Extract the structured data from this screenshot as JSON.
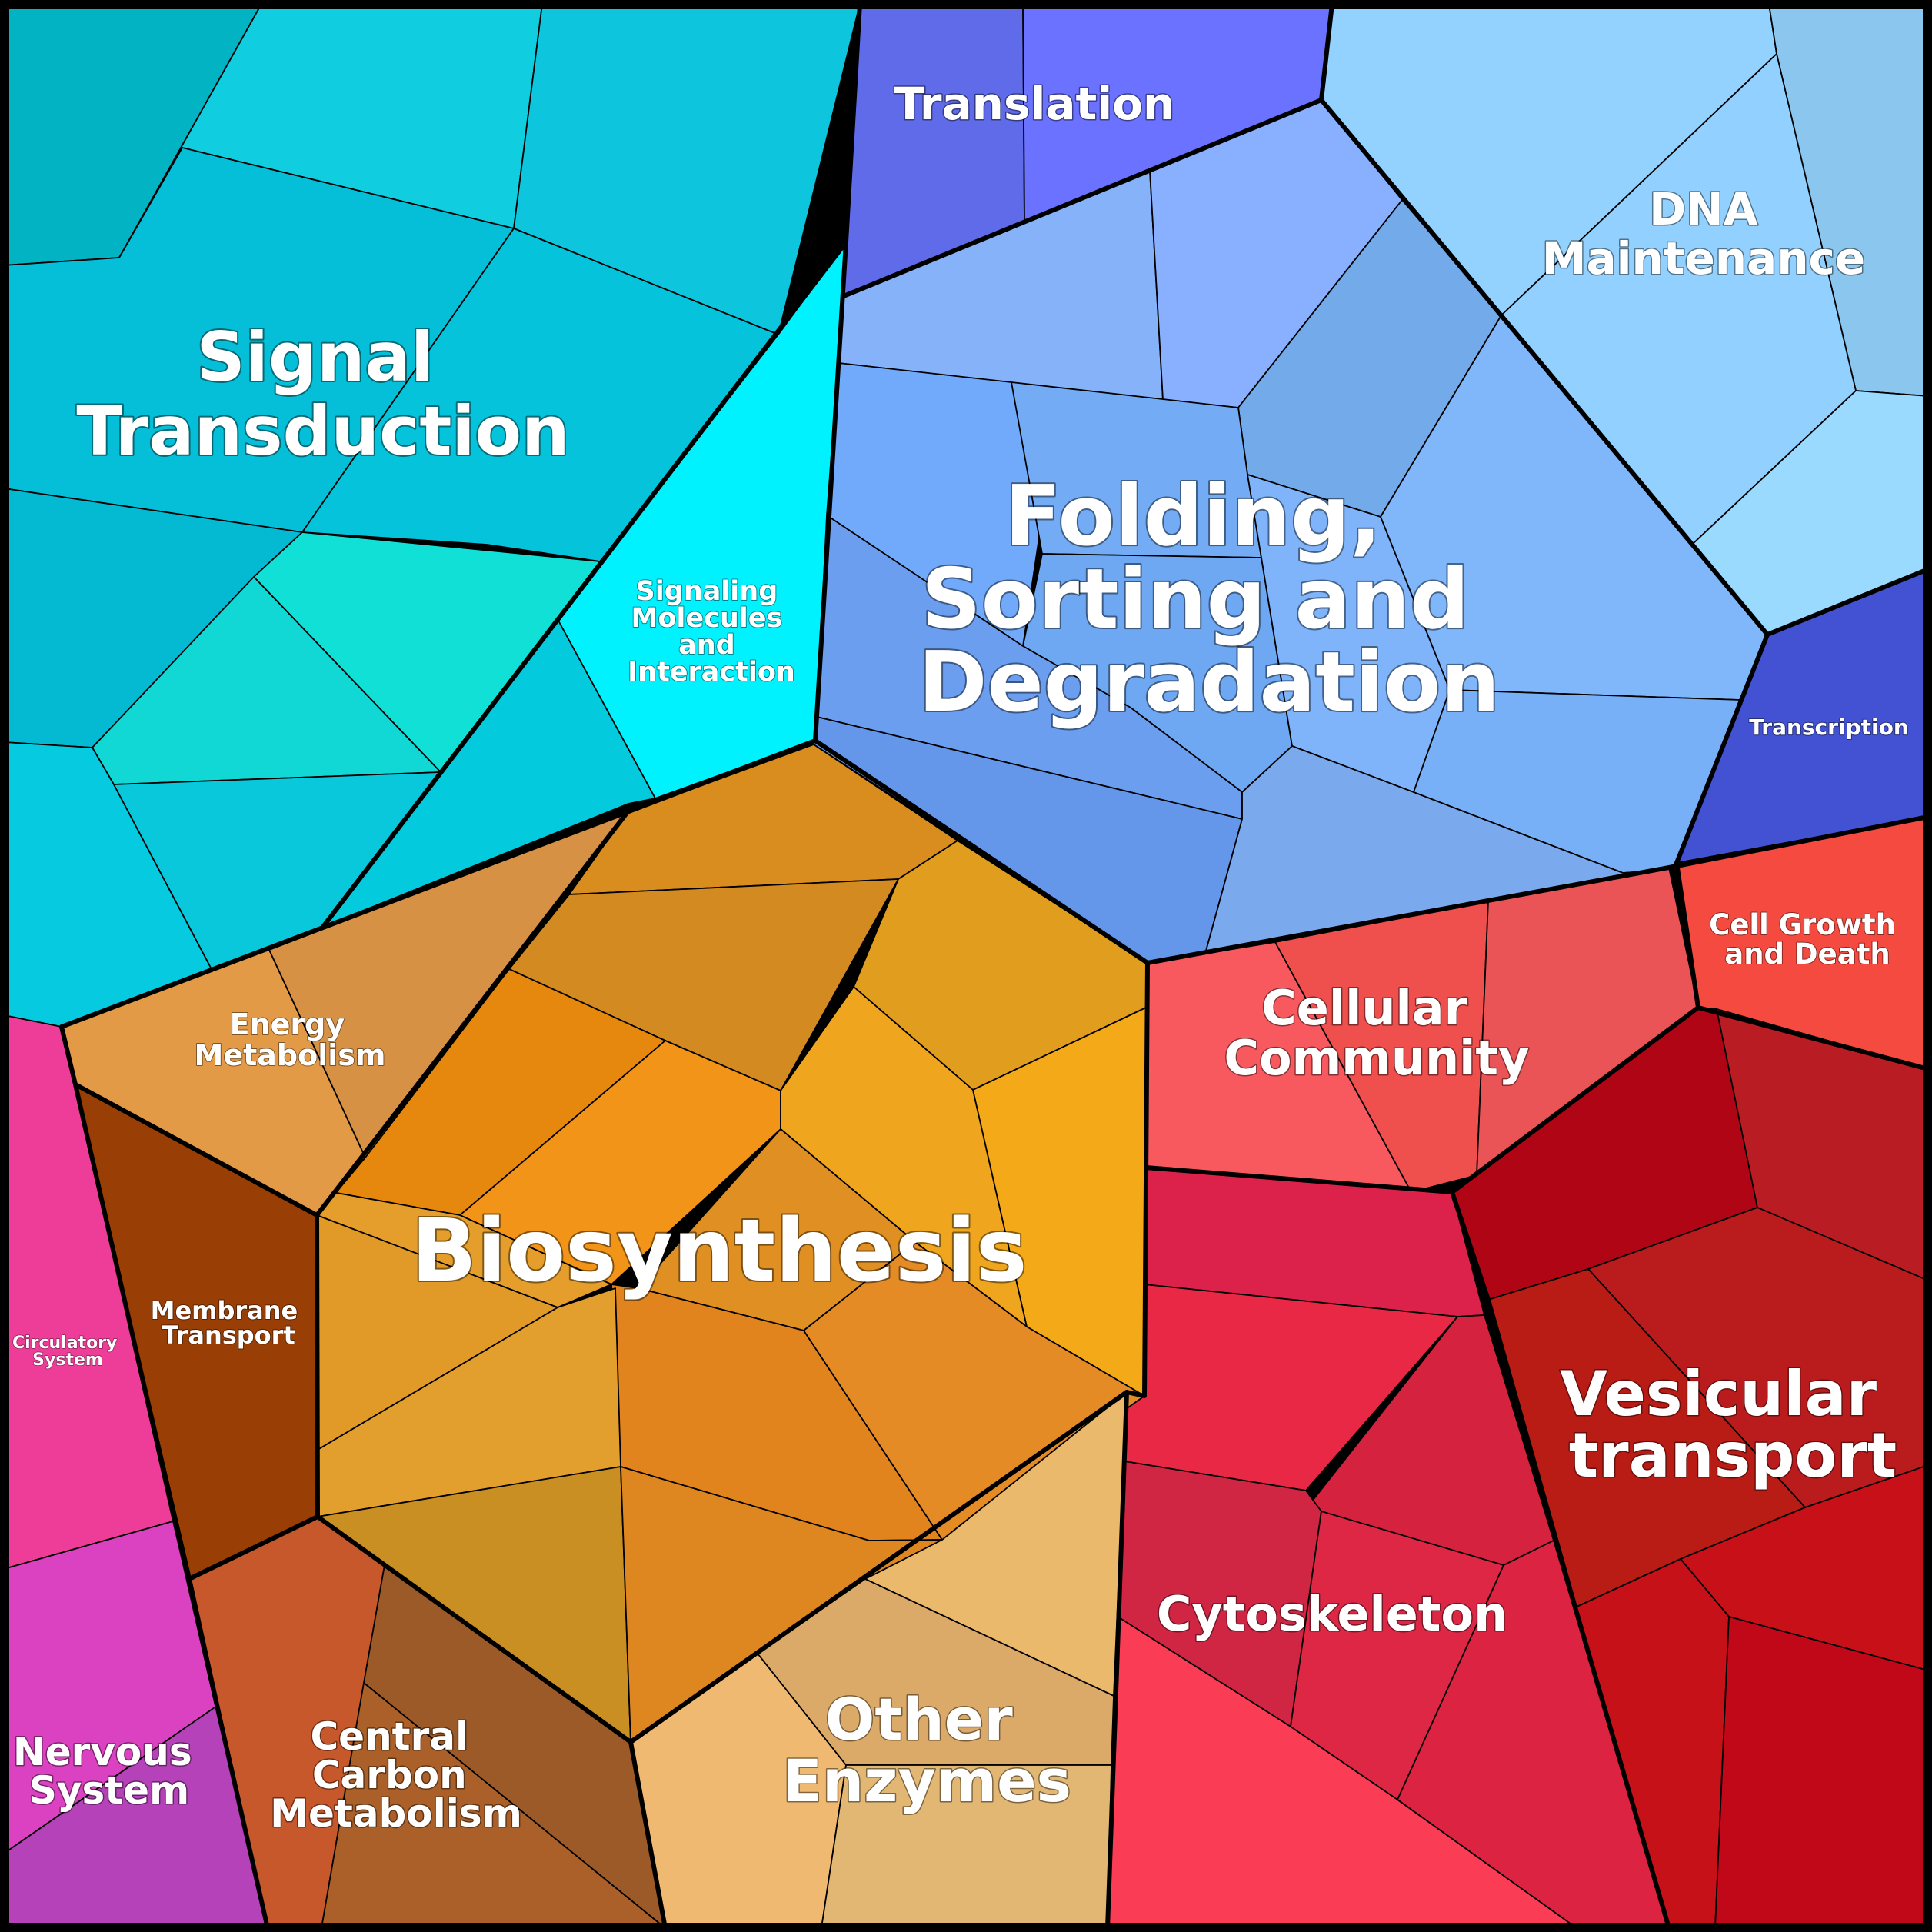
{
  "title": "",
  "categories": [
    {
      "name": "Signal Transduction",
      "label_lines": [
        "Signal",
        "Transduction"
      ]
    },
    {
      "name": "Signaling Molecules and Interaction",
      "label_lines": [
        "Signaling",
        "Molecules",
        "and",
        "Interaction"
      ]
    },
    {
      "name": "Translation",
      "label_lines": [
        "Translation"
      ]
    },
    {
      "name": "DNA Maintenance",
      "label_lines": [
        "DNA",
        "Maintenance"
      ]
    },
    {
      "name": "Folding, Sorting and Degradation",
      "label_lines": [
        "Folding,",
        "Sorting and",
        "Degradation"
      ]
    },
    {
      "name": "Transcription",
      "label_lines": [
        "Transcription"
      ]
    },
    {
      "name": "Cell Growth and Death",
      "label_lines": [
        "Cell Growth",
        "and Death"
      ]
    },
    {
      "name": "Cellular Community",
      "label_lines": [
        "Cellular",
        "Community"
      ]
    },
    {
      "name": "Energy Metabolism",
      "label_lines": [
        "Energy",
        "Metabolism"
      ]
    },
    {
      "name": "Biosynthesis",
      "label_lines": [
        "Biosynthesis"
      ]
    },
    {
      "name": "Membrane Transport",
      "label_lines": [
        "Membrane",
        "Transport"
      ]
    },
    {
      "name": "Circulatory System",
      "label_lines": [
        "Circulatory",
        "System"
      ]
    },
    {
      "name": "Nervous System",
      "label_lines": [
        "Nervous",
        "System"
      ]
    },
    {
      "name": "Central Carbon Metabolism",
      "label_lines": [
        "Central",
        "Carbon",
        "Metabolism"
      ]
    },
    {
      "name": "Other Enzymes",
      "label_lines": [
        "Other",
        "Enzymes"
      ]
    },
    {
      "name": "Vesicular transport",
      "label_lines": [
        "Vesicular",
        "transport"
      ]
    },
    {
      "name": "Cytoskeleton",
      "label_lines": [
        "Cytoskeleton"
      ]
    }
  ],
  "colors": {
    "signal_transduction": "#06C4D8",
    "signaling_molecules": "#00F0FF",
    "translation": "#6370F0",
    "dna_maintenance": "#93D3FF",
    "folding_sorting": "#74AEF6",
    "transcription": "#4252D2",
    "cell_growth": "#F5493F",
    "cellular_community": "#F25A5C",
    "energy_metabolism": "#E29A48",
    "biosynthesis": "#E08B1E",
    "membrane_transport": "#993F05",
    "circulatory_system": "#EE3D9A",
    "nervous_system": "#D741C7",
    "central_carbon": "#B65A28",
    "other_enzymes": "#E6B777",
    "vesicular_transport": "#C21019",
    "cytoskeleton": "#E32C48",
    "borders": "#000000"
  }
}
